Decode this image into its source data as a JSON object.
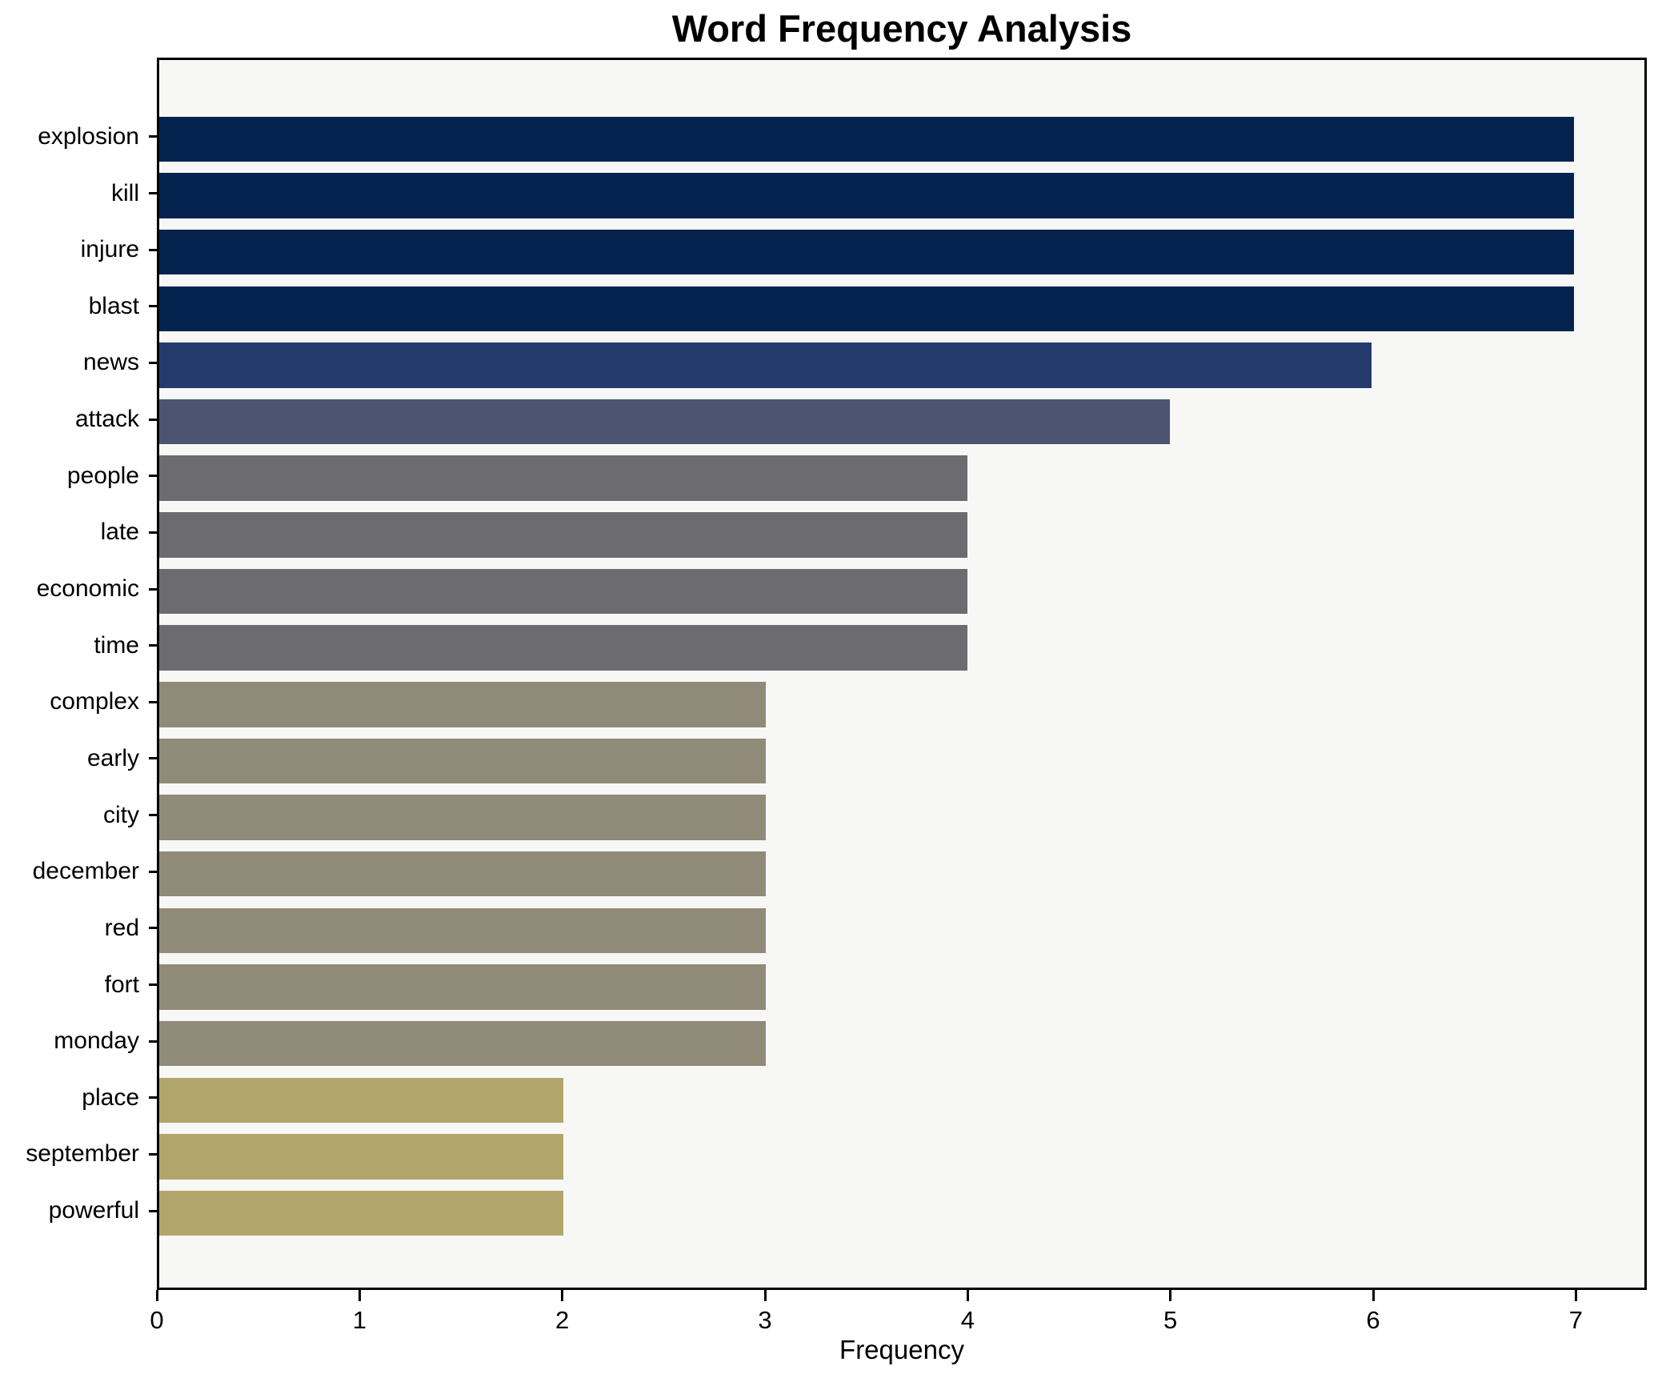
{
  "chart_data": {
    "type": "bar",
    "orientation": "horizontal",
    "title": "Word Frequency Analysis",
    "xlabel": "Frequency",
    "ylabel": "",
    "xlim": [
      0,
      7.35
    ],
    "xticks": [
      0,
      1,
      2,
      3,
      4,
      5,
      6,
      7
    ],
    "grid": false,
    "legend": null,
    "categories": [
      "explosion",
      "kill",
      "injure",
      "blast",
      "news",
      "attack",
      "people",
      "late",
      "economic",
      "time",
      "complex",
      "early",
      "city",
      "december",
      "red",
      "fort",
      "monday",
      "place",
      "september",
      "powerful"
    ],
    "values": [
      7,
      7,
      7,
      7,
      6,
      5,
      4,
      4,
      4,
      4,
      3,
      3,
      3,
      3,
      3,
      3,
      3,
      2,
      2,
      2
    ],
    "bar_colors": [
      "#04234E",
      "#04234E",
      "#04234E",
      "#04234E",
      "#243A6C",
      "#4D5472",
      "#6C6C70",
      "#6C6C70",
      "#6C6C70",
      "#6C6C70",
      "#908A78",
      "#908A78",
      "#908A78",
      "#908A78",
      "#908A78",
      "#908A78",
      "#908A78",
      "#B2A56B",
      "#B2A56B",
      "#B2A56B"
    ],
    "colors": {
      "plot_background": "#F7F7F6",
      "figure_background": "#FFFFFF",
      "spine": "#000000",
      "text": "#000000"
    }
  }
}
